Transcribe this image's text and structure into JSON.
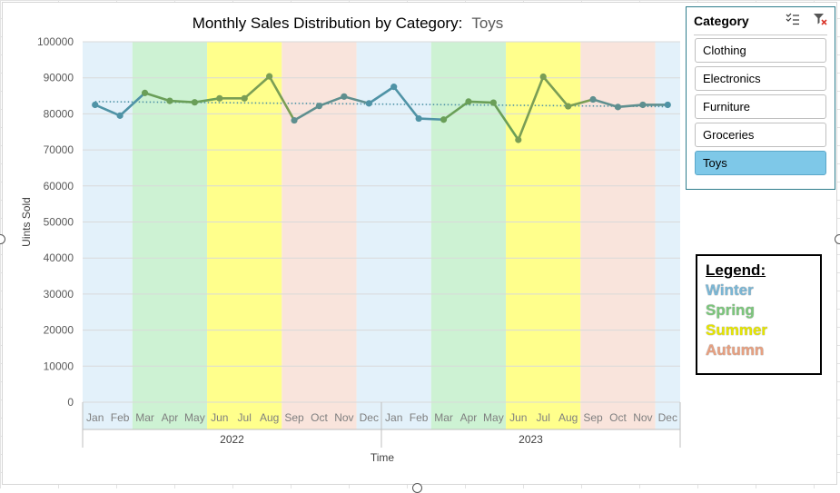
{
  "chart_data": {
    "type": "line",
    "title": "Monthly Sales Distribution by Category:",
    "xlabel": "Time",
    "ylabel": "Uints Sold",
    "ylim": [
      0,
      100000
    ],
    "yticks": [
      0,
      10000,
      20000,
      30000,
      40000,
      50000,
      60000,
      70000,
      80000,
      90000,
      100000
    ],
    "grid": true,
    "legend_placement": "right",
    "year_groups": [
      {
        "label": "2022",
        "start": 0,
        "end": 11
      },
      {
        "label": "2023",
        "start": 12,
        "end": 23
      }
    ],
    "categories": [
      "Jan",
      "Feb",
      "Mar",
      "Apr",
      "May",
      "Jun",
      "Jul",
      "Aug",
      "Sep",
      "Oct",
      "Nov",
      "Dec",
      "Jan",
      "Feb",
      "Mar",
      "Apr",
      "May",
      "Jun",
      "Jul",
      "Aug",
      "Sep",
      "Oct",
      "Nov",
      "Dec"
    ],
    "season_bands": [
      {
        "season": "Winter",
        "start": 0,
        "end": 1
      },
      {
        "season": "Spring",
        "start": 2,
        "end": 4
      },
      {
        "season": "Summer",
        "start": 5,
        "end": 7
      },
      {
        "season": "Autumn",
        "start": 8,
        "end": 10
      },
      {
        "season": "Winter",
        "start": 11,
        "end": 13
      },
      {
        "season": "Spring",
        "start": 14,
        "end": 16
      },
      {
        "season": "Summer",
        "start": 17,
        "end": 19
      },
      {
        "season": "Autumn",
        "start": 20,
        "end": 22
      },
      {
        "season": "Winter",
        "start": 23,
        "end": 23
      }
    ],
    "series": [
      {
        "values": [
          82500,
          79500,
          85800,
          83600,
          83200,
          84300,
          84300,
          90400,
          78200,
          82200,
          84800,
          82900,
          87500,
          78700,
          78400,
          83400,
          83100,
          72800,
          90300,
          82100,
          84000,
          81900,
          82500,
          82500
        ],
        "trendline": {
          "type": "linear",
          "start": 83400,
          "end": 82000
        }
      }
    ]
  },
  "colors": {
    "Winter": "#e3f1fa",
    "Spring": "#cdf2d3",
    "Summer": "#ffff8c",
    "Autumn": "#f9e4dc",
    "line_winter": "#4f93a6",
    "line_spring": "#6a9f58",
    "line_summer": "#7a9e55",
    "line_autumn": "#5f8f8f",
    "trend": "#4f93a6",
    "legend_winter": "#7ab7d6",
    "legend_spring": "#7cc77c",
    "legend_summer": "#e6e600",
    "legend_autumn": "#e8a080"
  },
  "slicer": {
    "header": "Category",
    "multi_select_icon": "multi-select-icon",
    "clear_filter_icon": "clear-filter-icon",
    "items": [
      "Clothing",
      "Electronics",
      "Furniture",
      "Groceries",
      "Toys"
    ],
    "selected": "Toys"
  },
  "legend": {
    "title": "Legend:",
    "entries": [
      "Winter",
      "Spring",
      "Summer",
      "Autumn"
    ]
  }
}
